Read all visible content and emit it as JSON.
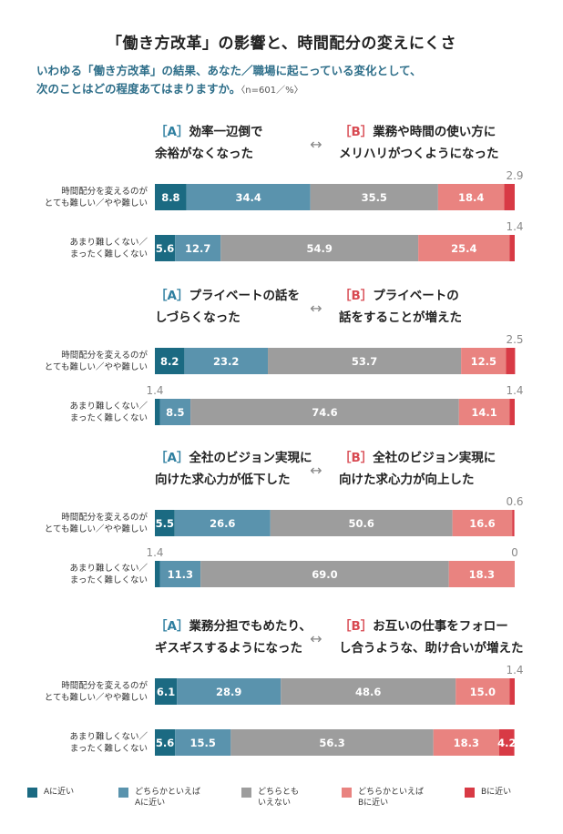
{
  "title": "「働き方改革」の影響と、時間配分の変えにくさ",
  "subtitle": {
    "line1": "いわゆる「働き方改革」の結果、あなた／職場に起こっている変化として、",
    "line2": "次のことはどの程度あてはまりますか。",
    "note": "〈n=601／%〉"
  },
  "colors": {
    "A": "#1b6a82",
    "leanA": "#5a93ad",
    "neutral": "#9d9d9d",
    "leanB": "#e98380",
    "B": "#d83a45",
    "label_A": "#2f7fa0",
    "label_B": "#d84a52"
  },
  "legend": [
    {
      "key": "A",
      "label": "Aに近い"
    },
    {
      "key": "leanA",
      "label": "どちらかといえば\nAに近い"
    },
    {
      "key": "neutral",
      "label": "どちらとも\nいえない"
    },
    {
      "key": "leanB",
      "label": "どちらかといえば\nBに近い"
    },
    {
      "key": "B",
      "label": "Bに近い"
    }
  ],
  "chart_data": {
    "type": "bar",
    "stacked": "horizontal-100%",
    "categories": [
      "Aに近い",
      "どちらかといえばAに近い",
      "どちらともいえない",
      "どちらかといえばBに近い",
      "Bに近い"
    ],
    "row_labels": [
      "時間配分を変えるのが\nとても難しい／やや難しい",
      "あまり難しくない／\nまったく難しくない"
    ],
    "groups": [
      {
        "label_A": "［A］効率一辺倒で\n余裕がなくなった",
        "label_B": "［B］業務や時間の使い方に\nメリハリがつくようになった",
        "rows": [
          {
            "values": [
              8.8,
              34.4,
              35.5,
              18.4,
              2.9
            ]
          },
          {
            "values": [
              5.6,
              12.7,
              54.9,
              25.4,
              1.4
            ]
          }
        ]
      },
      {
        "label_A": "［A］プライベートの話を\nしづらくなった",
        "label_B": "［B］プライベートの\n話をすることが増えた",
        "rows": [
          {
            "values": [
              8.2,
              23.2,
              53.7,
              12.5,
              2.5
            ]
          },
          {
            "values": [
              1.4,
              8.5,
              74.6,
              14.1,
              1.4
            ]
          }
        ]
      },
      {
        "label_A": "［A］全社のビジョン実現に\n向けた求心力が低下した",
        "label_B": "［B］全社のビジョン実現に\n向けた求心力が向上した",
        "rows": [
          {
            "values": [
              5.5,
              26.6,
              50.6,
              16.6,
              0.6
            ]
          },
          {
            "values": [
              1.4,
              11.3,
              69.0,
              18.3,
              0
            ]
          }
        ]
      },
      {
        "label_A": "［A］業務分担でもめたり、\nギスギスするようになった",
        "label_B": "［B］お互いの仕事をフォロー\nし合うような、助け合いが増えた",
        "rows": [
          {
            "values": [
              6.1,
              28.9,
              48.6,
              15.0,
              1.4
            ]
          },
          {
            "values": [
              5.6,
              15.5,
              56.3,
              18.3,
              4.2
            ]
          }
        ]
      }
    ],
    "arrow_symbol": "↔",
    "grid": false,
    "legend_position": "bottom"
  }
}
